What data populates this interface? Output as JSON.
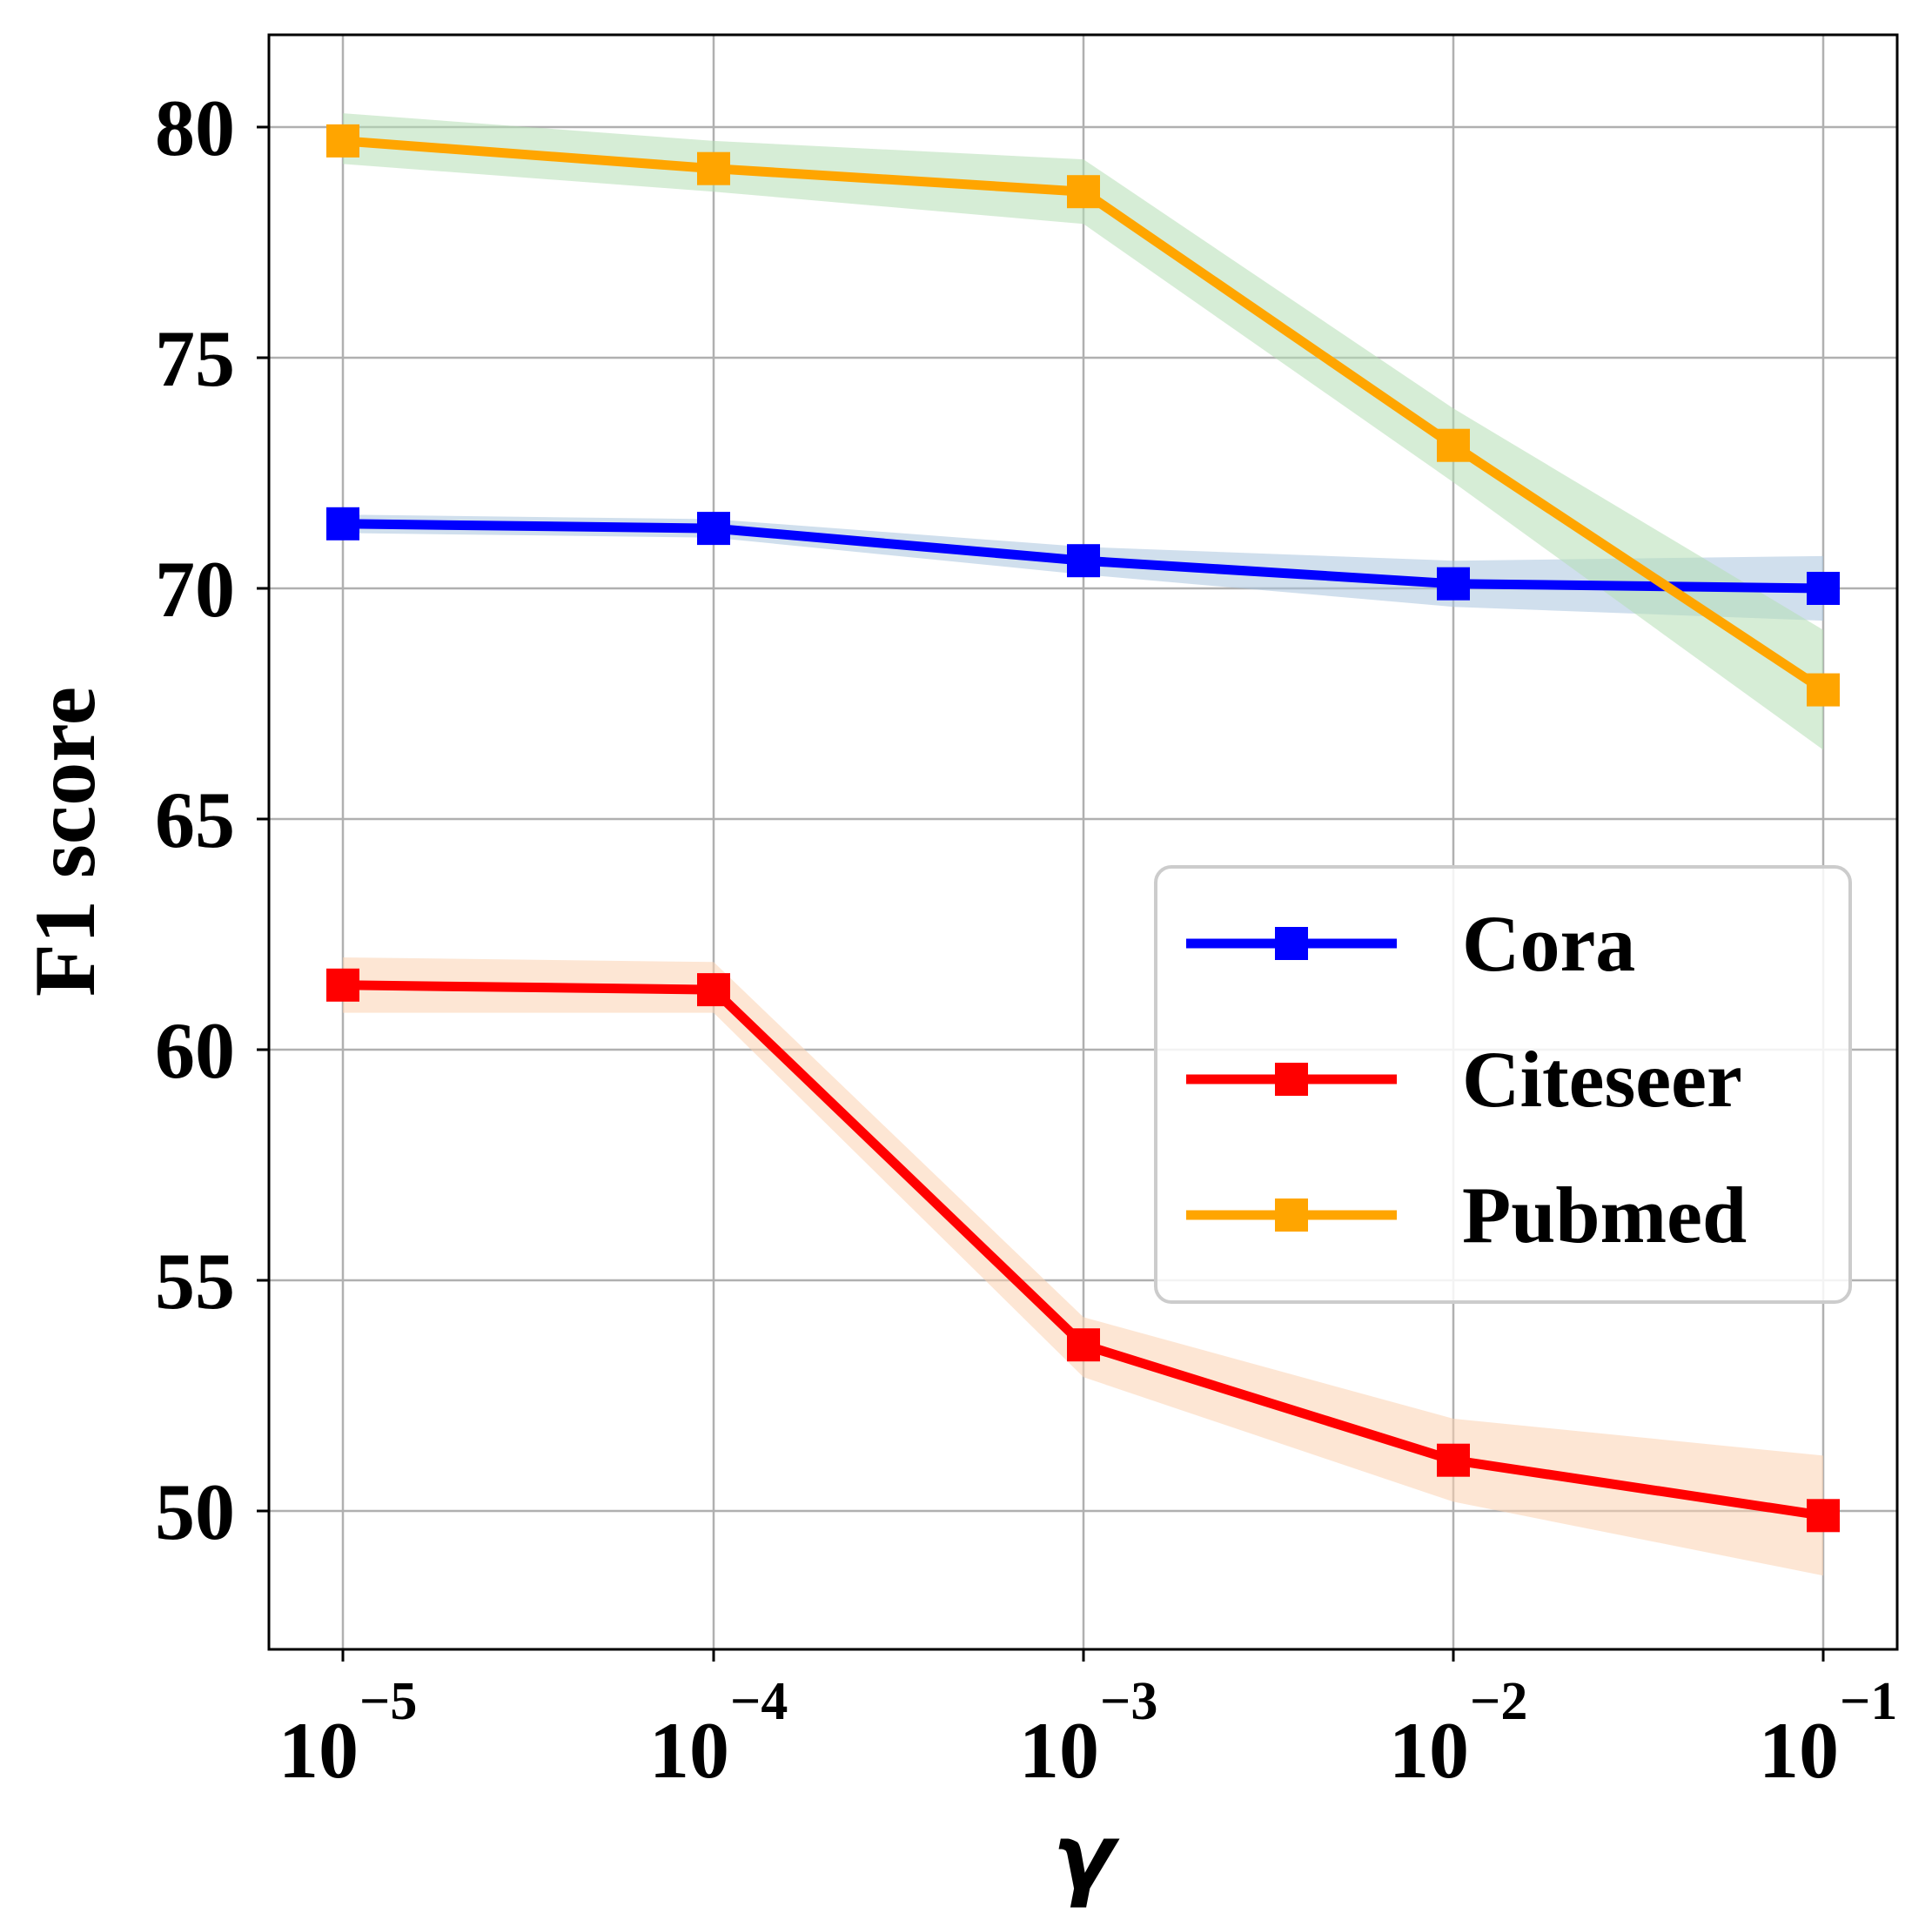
{
  "chart_data": {
    "type": "line",
    "title": "",
    "xlabel": "γ",
    "ylabel": "F1 score",
    "xscale": "log",
    "x": [
      1e-05,
      0.0001,
      0.001,
      0.01,
      0.1
    ],
    "xtick_labels": [
      {
        "base": "10",
        "exp": "−5"
      },
      {
        "base": "10",
        "exp": "−4"
      },
      {
        "base": "10",
        "exp": "−3"
      },
      {
        "base": "10",
        "exp": "−2"
      },
      {
        "base": "10",
        "exp": "−1"
      }
    ],
    "yticks": [
      "50",
      "55",
      "60",
      "65",
      "70",
      "75",
      "80"
    ],
    "ylim": [
      47,
      82
    ],
    "grid": true,
    "legend_position": "center-right",
    "series": [
      {
        "name": "Cora",
        "color": "#0000ff",
        "band_color": "#a9c4df",
        "values": [
          71.4,
          71.3,
          70.6,
          70.1,
          70.0
        ],
        "lower": [
          71.2,
          71.1,
          70.3,
          69.6,
          69.3
        ],
        "upper": [
          71.6,
          71.5,
          70.9,
          70.6,
          70.7
        ]
      },
      {
        "name": "Citeseer",
        "color": "#ff0000",
        "band_color": "#fbd2b0",
        "values": [
          61.4,
          61.3,
          53.6,
          51.1,
          49.9
        ],
        "lower": [
          60.8,
          60.8,
          52.9,
          50.2,
          48.6
        ],
        "upper": [
          62.0,
          61.9,
          54.2,
          52.0,
          51.2
        ]
      },
      {
        "name": "Pubmed",
        "color": "#ffa500",
        "band_color": "#b4dfb4",
        "values": [
          79.7,
          79.1,
          78.6,
          73.1,
          67.8
        ],
        "lower": [
          79.2,
          78.6,
          77.9,
          72.3,
          66.5
        ],
        "upper": [
          80.3,
          79.7,
          79.3,
          73.9,
          69.1
        ]
      }
    ]
  }
}
